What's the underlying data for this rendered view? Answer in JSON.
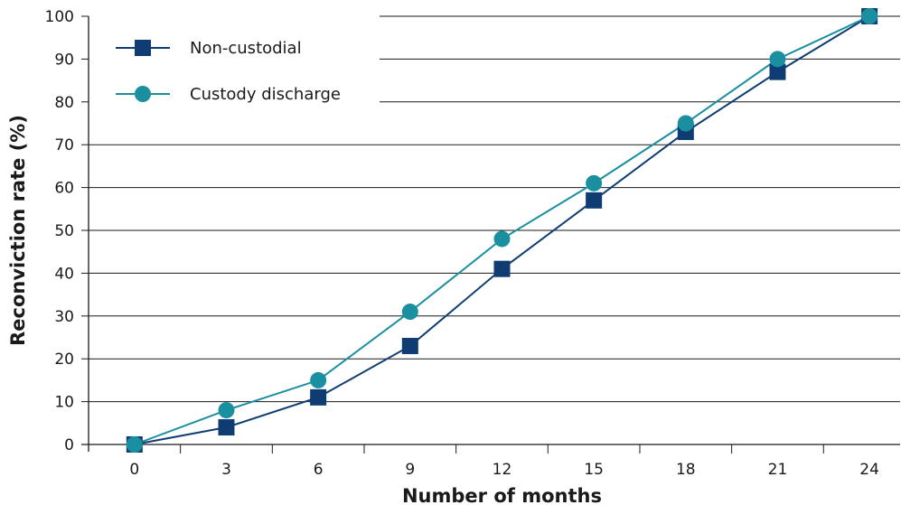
{
  "chart_data": {
    "type": "line",
    "xlabel": "Number of months",
    "ylabel": "Reconviction rate (%)",
    "x": [
      0,
      3,
      6,
      9,
      12,
      15,
      18,
      21,
      24
    ],
    "xlim": [
      -1.5,
      25
    ],
    "ylim": [
      0,
      100
    ],
    "yticks": [
      0,
      10,
      20,
      30,
      40,
      50,
      60,
      70,
      80,
      90,
      100
    ],
    "grid": true,
    "legend_position": "top-left",
    "series": [
      {
        "name": "Non-custodial",
        "marker": "square",
        "color": "#0f3d73",
        "values": [
          0,
          4,
          11,
          23,
          41,
          57,
          73,
          87,
          100
        ]
      },
      {
        "name": "Custody discharge",
        "marker": "circle",
        "color": "#1a8fa0",
        "values": [
          0,
          8,
          15,
          31,
          48,
          61,
          75,
          90,
          100
        ]
      }
    ]
  }
}
